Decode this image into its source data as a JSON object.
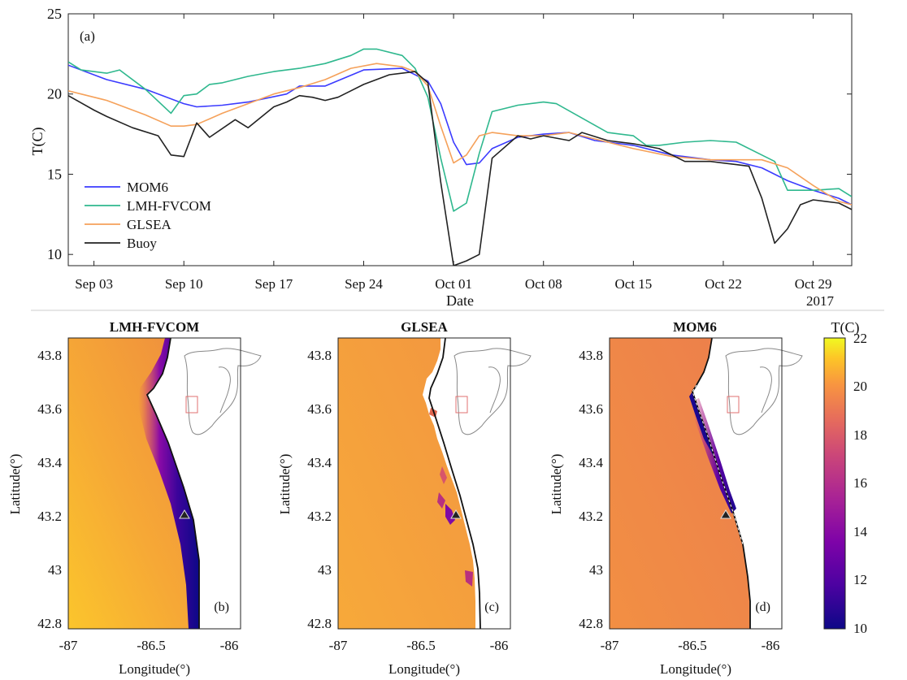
{
  "chart_data": [
    {
      "type": "line",
      "panel_label": "(a)",
      "xlabel": "Date",
      "ylabel": "T(C)",
      "year_label": "2017",
      "ylim": [
        9.3,
        25
      ],
      "yticks": [
        10,
        15,
        20,
        25
      ],
      "xlim": [
        0,
        61
      ],
      "xticks": [
        {
          "label": "Sep 03",
          "day": 2
        },
        {
          "label": "Sep 10",
          "day": 9
        },
        {
          "label": "Sep 17",
          "day": 16
        },
        {
          "label": "Sep 24",
          "day": 23
        },
        {
          "label": "Oct 01",
          "day": 30
        },
        {
          "label": "Oct 08",
          "day": 37
        },
        {
          "label": "Oct 15",
          "day": 44
        },
        {
          "label": "Oct 22",
          "day": 51
        },
        {
          "label": "Oct 29",
          "day": 58
        }
      ],
      "legend_position": "bottom-left",
      "series": [
        {
          "name": "MOM6",
          "color": "#3b3bff",
          "x": [
            0,
            3,
            6,
            9,
            10,
            12,
            14,
            17,
            18,
            20,
            23,
            26,
            28,
            29,
            30,
            31,
            32,
            33,
            35,
            37,
            39,
            41,
            44,
            47,
            50,
            52,
            54,
            56,
            58,
            60,
            61
          ],
          "y": [
            21.8,
            20.9,
            20.3,
            19.4,
            19.2,
            19.3,
            19.5,
            20.0,
            20.5,
            20.5,
            21.5,
            21.6,
            20.8,
            19.4,
            17.0,
            15.6,
            15.7,
            16.6,
            17.3,
            17.5,
            17.6,
            17.1,
            16.8,
            16.2,
            15.9,
            15.8,
            15.4,
            14.6,
            14.0,
            13.5,
            13.1
          ]
        },
        {
          "name": "LMH-FVCOM",
          "color": "#2fb88e",
          "x": [
            0,
            1,
            3,
            4,
            6,
            8,
            9,
            10,
            11,
            12,
            14,
            16,
            18,
            20,
            22,
            23,
            24,
            26,
            27,
            28,
            29,
            30,
            31,
            32,
            33,
            35,
            37,
            38,
            40,
            42,
            44,
            45,
            46,
            48,
            50,
            52,
            54,
            55,
            56,
            58,
            60,
            61
          ],
          "y": [
            22.0,
            21.5,
            21.3,
            21.5,
            20.3,
            18.8,
            19.9,
            20.0,
            20.6,
            20.7,
            21.1,
            21.4,
            21.6,
            21.9,
            22.4,
            22.8,
            22.8,
            22.4,
            21.6,
            19.8,
            16.0,
            12.7,
            13.2,
            16.3,
            18.9,
            19.3,
            19.5,
            19.4,
            18.5,
            17.6,
            17.4,
            16.8,
            16.8,
            17.0,
            17.1,
            17.0,
            16.2,
            15.8,
            14.0,
            14.0,
            14.1,
            13.6
          ]
        },
        {
          "name": "GLSEA",
          "color": "#f5a15a",
          "x": [
            0,
            3,
            6,
            8,
            9,
            10,
            12,
            14,
            16,
            18,
            20,
            22,
            24,
            26,
            27,
            28,
            29,
            30,
            31,
            32,
            33,
            35,
            37,
            39,
            41,
            44,
            47,
            50,
            54,
            56,
            58,
            60,
            61
          ],
          "y": [
            20.2,
            19.6,
            18.7,
            18.0,
            18.0,
            18.1,
            18.8,
            19.4,
            20.0,
            20.4,
            20.9,
            21.6,
            21.9,
            21.7,
            21.4,
            20.5,
            18.0,
            15.7,
            16.2,
            17.4,
            17.6,
            17.4,
            17.4,
            17.6,
            17.2,
            16.6,
            16.1,
            15.9,
            15.9,
            15.4,
            14.3,
            13.3,
            13.1
          ]
        },
        {
          "name": "Buoy",
          "color": "#222222",
          "x": [
            0,
            2,
            3,
            5,
            7,
            8,
            9,
            10,
            11,
            13,
            14,
            16,
            17,
            18,
            19,
            20,
            21,
            22,
            23,
            25,
            26,
            27,
            28,
            29,
            30,
            31,
            32,
            33,
            35,
            36,
            37,
            39,
            40,
            42,
            44,
            46,
            48,
            50,
            52,
            53,
            54,
            55,
            56,
            57,
            58,
            60,
            61
          ],
          "y": [
            19.9,
            19.0,
            18.6,
            17.9,
            17.4,
            16.2,
            16.1,
            18.2,
            17.3,
            18.4,
            17.9,
            19.2,
            19.5,
            19.9,
            19.8,
            19.6,
            19.8,
            20.2,
            20.6,
            21.2,
            21.3,
            21.4,
            20.7,
            14.5,
            9.3,
            9.6,
            10.0,
            16.0,
            17.4,
            17.2,
            17.4,
            17.1,
            17.6,
            17.1,
            16.9,
            16.6,
            15.8,
            15.8,
            15.6,
            15.5,
            13.5,
            10.7,
            11.6,
            13.1,
            13.4,
            13.2,
            12.8
          ]
        }
      ]
    },
    {
      "type": "heatmap",
      "title": "LMH-FVCOM",
      "panel_label": "(b)",
      "xlabel": "Longitude(°)",
      "ylabel": "Latitude(°)",
      "xlim": [
        -87,
        -85.9
      ],
      "ylim": [
        42.77,
        43.85
      ],
      "xticks": [
        "-87",
        "-86.5",
        "-86"
      ],
      "yticks": [
        "42.8",
        "43",
        "43.2",
        "43.4",
        "43.6",
        "43.8"
      ],
      "buoy_marker": {
        "lon": -86.35,
        "lat": 43.19
      }
    },
    {
      "type": "heatmap",
      "title": "GLSEA",
      "panel_label": "(c)",
      "xlabel": "Longitude(°)",
      "ylabel": "Latitude(°)",
      "xlim": [
        -87,
        -85.9
      ],
      "ylim": [
        42.77,
        43.85
      ],
      "xticks": [
        "-87",
        "-86.5",
        "-86"
      ],
      "yticks": [
        "42.8",
        "43",
        "43.2",
        "43.4",
        "43.6",
        "43.8"
      ],
      "buoy_marker": {
        "lon": -86.35,
        "lat": 43.19
      }
    },
    {
      "type": "heatmap",
      "title": "MOM6",
      "panel_label": "(d)",
      "xlabel": "Longitude(°)",
      "ylabel": "Latitude(°)",
      "xlim": [
        -87,
        -85.9
      ],
      "ylim": [
        42.77,
        43.85
      ],
      "xticks": [
        "-87",
        "-86.5",
        "-86"
      ],
      "yticks": [
        "42.8",
        "43",
        "43.2",
        "43.4",
        "43.6",
        "43.8"
      ],
      "buoy_marker": {
        "lon": -86.35,
        "lat": 43.19
      }
    }
  ],
  "colorbar": {
    "title": "T(C)",
    "range": [
      10,
      22
    ],
    "ticks": [
      "10",
      "12",
      "14",
      "16",
      "18",
      "20",
      "22"
    ],
    "colormap": "plasma"
  }
}
